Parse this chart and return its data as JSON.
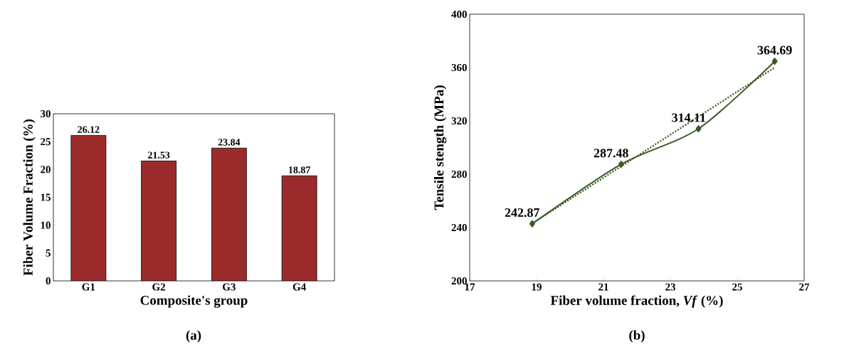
{
  "chart_data": [
    {
      "type": "bar",
      "xlabel": "Composite's group",
      "ylabel": "Fiber Volume Fraction (%)",
      "categories": [
        "G1",
        "G2",
        "G3",
        "G4"
      ],
      "values": [
        26.12,
        21.53,
        23.84,
        18.87
      ],
      "color": "#9b2b2b",
      "ylim": [
        0,
        30
      ],
      "yticks": [
        0,
        5,
        10,
        15,
        20,
        25,
        30
      ],
      "data_labels": true,
      "annotations": [
        "(a)"
      ]
    },
    {
      "type": "line",
      "xlabel": "Fiber volume fraction, *Vf* (%)",
      "ylabel": "Tensile stength (MPa)",
      "xlim": [
        17,
        27
      ],
      "xticks": [
        17,
        19,
        21,
        23,
        25,
        27
      ],
      "ylim": [
        200,
        400
      ],
      "yticks": [
        200,
        240,
        280,
        320,
        360,
        400
      ],
      "series": [
        {
          "type": "line",
          "color": "#3b5a23",
          "x": [
            18.87,
            21.53,
            23.84,
            26.12
          ],
          "values": [
            242.87,
            287.48,
            314.11,
            364.69
          ],
          "marker": "diamond",
          "line_style": "solid",
          "value_labels": [
            "242.87",
            "287.48",
            "314.11",
            "364.69"
          ]
        },
        {
          "type": "line",
          "color": "#3b5a23",
          "x": [
            18.87,
            26.12
          ],
          "values": [
            243,
            360
          ],
          "marker": "none",
          "line_style": "dotted"
        }
      ],
      "annotations": [
        "(b)"
      ]
    }
  ]
}
